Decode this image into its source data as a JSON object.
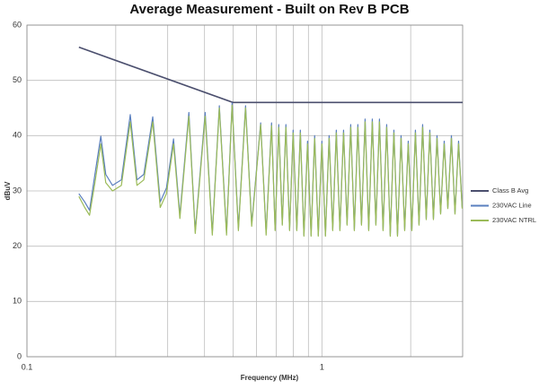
{
  "chart_data": {
    "type": "line",
    "title": "Average Measurement - Built on Rev B PCB",
    "x_label": "Frequency (MHz)",
    "y_label": "dBuV",
    "xscale": "log",
    "xlim": [
      0.1,
      3
    ],
    "xticks": [
      0.1,
      1
    ],
    "ylim": [
      0,
      60
    ],
    "yticks": [
      0,
      10,
      20,
      30,
      40,
      50,
      60
    ],
    "grid": true,
    "minor_grid": true,
    "legend": "right",
    "series": [
      {
        "name": "Class B Avg",
        "color": "#4b4f6e",
        "x": [
          0.15,
          0.5,
          3
        ],
        "values": [
          56,
          46,
          46
        ]
      },
      {
        "name": "230VAC Line",
        "color": "#5a7fbf",
        "x": [
          0.15,
          0.157,
          0.163,
          0.17,
          0.178,
          0.185,
          0.195,
          0.209,
          0.224,
          0.236,
          0.249,
          0.267,
          0.283,
          0.297,
          0.314,
          0.33,
          0.354,
          0.372,
          0.402,
          0.425,
          0.449,
          0.475,
          0.496,
          0.521,
          0.551,
          0.578,
          0.62,
          0.647,
          0.675,
          0.694,
          0.714,
          0.734,
          0.755,
          0.777,
          0.799,
          0.822,
          0.845,
          0.869,
          0.894,
          0.919,
          0.945,
          0.972,
          1.0,
          1.028,
          1.058,
          1.088,
          1.119,
          1.151,
          1.184,
          1.217,
          1.252,
          1.288,
          1.324,
          1.362,
          1.401,
          1.441,
          1.482,
          1.524,
          1.567,
          1.612,
          1.658,
          1.705,
          1.754,
          1.804,
          1.855,
          1.908,
          1.962,
          2.018,
          2.075,
          2.134,
          2.195,
          2.258,
          2.322,
          2.388,
          2.456,
          2.526,
          2.598,
          2.672,
          2.748,
          2.826,
          2.906,
          2.989
        ],
        "values": [
          29.5,
          28,
          26.5,
          33,
          39.9,
          33,
          31,
          32,
          43.8,
          32,
          33,
          43.4,
          28,
          30.5,
          39.4,
          25.6,
          44.2,
          22.7,
          44.2,
          22.4,
          45.4,
          22.4,
          45.9,
          23.2,
          45.4,
          24,
          42.3,
          22.4,
          42.3,
          23,
          42,
          24,
          42,
          23,
          41,
          23,
          41,
          22,
          39,
          22,
          40,
          22,
          39,
          22,
          40,
          23,
          41,
          23,
          41,
          24,
          42,
          23,
          42,
          24,
          43,
          23,
          43,
          24,
          43,
          23,
          42,
          22,
          41,
          22,
          40,
          23,
          39,
          23,
          41,
          24,
          42,
          25,
          41,
          25,
          40,
          26,
          39,
          27,
          40,
          26,
          39,
          27
        ]
      },
      {
        "name": "230VAC NTRL",
        "color": "#9bbb59",
        "x": [
          0.15,
          0.157,
          0.163,
          0.17,
          0.178,
          0.185,
          0.195,
          0.209,
          0.224,
          0.236,
          0.249,
          0.267,
          0.283,
          0.297,
          0.314,
          0.33,
          0.354,
          0.372,
          0.402,
          0.425,
          0.449,
          0.475,
          0.496,
          0.521,
          0.551,
          0.578,
          0.62,
          0.647,
          0.675,
          0.694,
          0.714,
          0.734,
          0.755,
          0.777,
          0.799,
          0.822,
          0.845,
          0.869,
          0.894,
          0.919,
          0.945,
          0.972,
          1.0,
          1.028,
          1.058,
          1.088,
          1.119,
          1.151,
          1.184,
          1.217,
          1.252,
          1.288,
          1.324,
          1.362,
          1.401,
          1.441,
          1.482,
          1.524,
          1.567,
          1.612,
          1.658,
          1.705,
          1.754,
          1.804,
          1.855,
          1.908,
          1.962,
          2.018,
          2.075,
          2.134,
          2.195,
          2.258,
          2.322,
          2.388,
          2.456,
          2.526,
          2.598,
          2.672,
          2.748,
          2.826,
          2.906,
          2.989
        ],
        "values": [
          29,
          27,
          25.6,
          31.5,
          38.5,
          31.5,
          30,
          31,
          42.5,
          31,
          32,
          42.5,
          27,
          29.5,
          38.5,
          25,
          43.5,
          22.3,
          43.5,
          22,
          45,
          22,
          45.5,
          22.8,
          45,
          23.6,
          42,
          22,
          41.8,
          22.8,
          41.5,
          23.8,
          41.5,
          22.8,
          40.5,
          22.8,
          40.5,
          21.8,
          38.5,
          21.8,
          39.5,
          21.8,
          38.5,
          21.8,
          39.5,
          22.8,
          40.5,
          22.8,
          40.5,
          23.8,
          41.5,
          22.8,
          41.5,
          23.8,
          42.5,
          22.8,
          42.5,
          23.8,
          42.5,
          22.8,
          41.5,
          21.8,
          40.5,
          21.8,
          39.5,
          22.8,
          38.5,
          22.8,
          40.5,
          23.8,
          41.5,
          24.8,
          40.5,
          24.8,
          39.5,
          25.8,
          38.5,
          26.8,
          39.5,
          25.8,
          38.5,
          26.8
        ]
      }
    ]
  }
}
